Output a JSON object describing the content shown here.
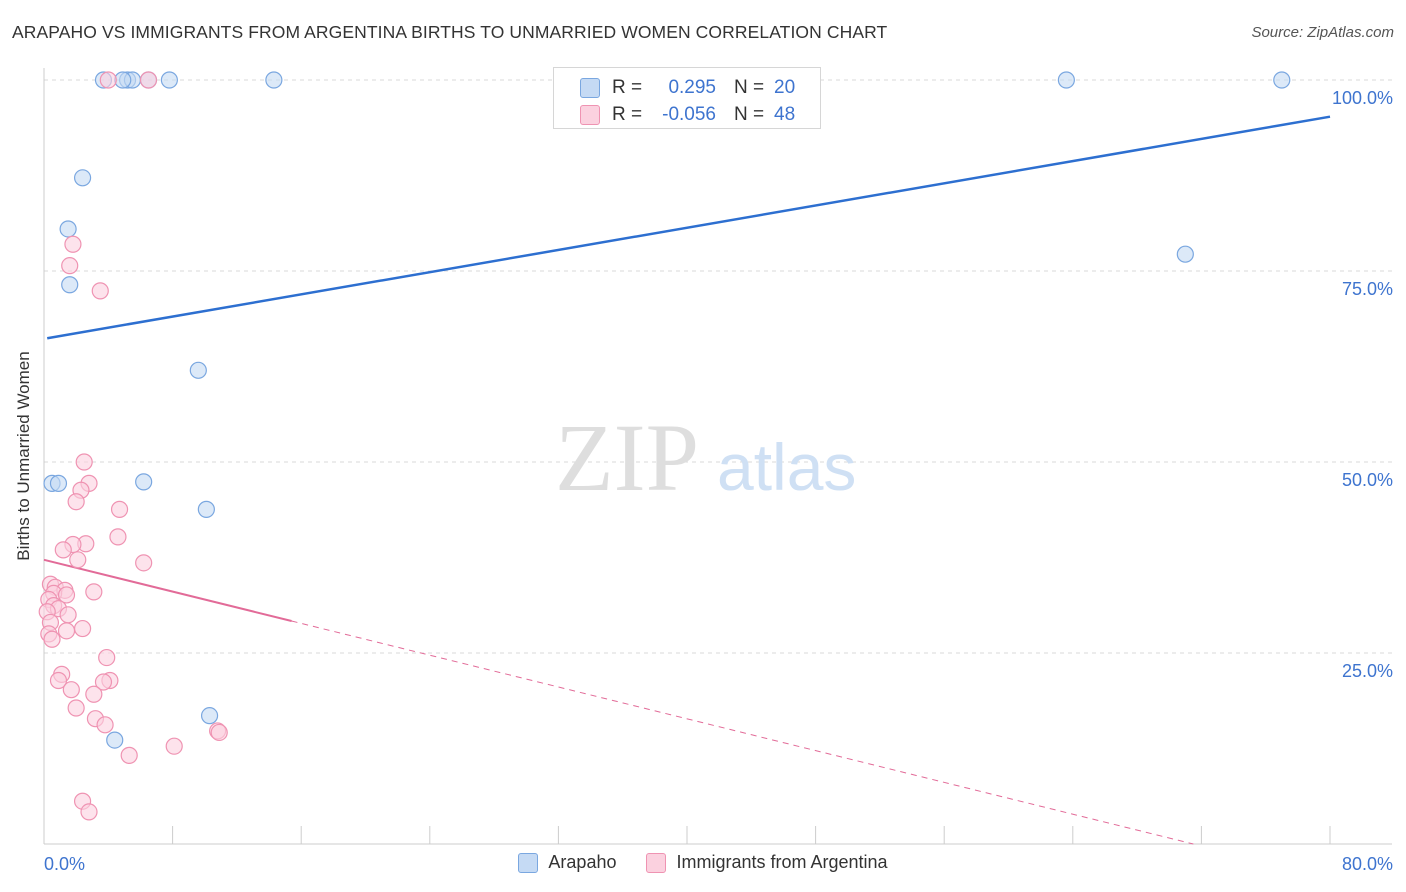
{
  "title": "ARAPAHO VS IMMIGRANTS FROM ARGENTINA BIRTHS TO UNMARRIED WOMEN CORRELATION CHART",
  "source": "Source: ZipAtlas.com",
  "watermark": {
    "zip": "ZIP",
    "atlas": "atlas"
  },
  "colors": {
    "blue_fill": "#c5daf4",
    "blue_stroke": "#7aa7e0",
    "blue_line": "#2d6fd0",
    "pink_fill": "#fbd1df",
    "pink_stroke": "#ef93b2",
    "pink_line": "#e26b98",
    "value_text": "#3e74cf",
    "grid": "#d9d9d9"
  },
  "legend_box": {
    "rows": [
      {
        "series": "blue",
        "r_label": "R =",
        "r_value": "0.295",
        "n_label": "N =",
        "n_value": "20"
      },
      {
        "series": "pink",
        "r_label": "R =",
        "r_value": "-0.056",
        "n_label": "N =",
        "n_value": "48"
      }
    ]
  },
  "legend_bottom": [
    {
      "series": "blue",
      "label": "Arapaho"
    },
    {
      "series": "pink",
      "label": "Immigrants from Argentina"
    }
  ],
  "chart_data": {
    "type": "scatter",
    "title": "ARAPAHO VS IMMIGRANTS FROM ARGENTINA BIRTHS TO UNMARRIED WOMEN CORRELATION CHART",
    "xlabel": "",
    "ylabel": "Births to Unmarried Women",
    "xlim": [
      0,
      80
    ],
    "ylim": [
      0,
      100
    ],
    "x_tick_labels": [
      {
        "value": 0,
        "label": "0.0%"
      },
      {
        "value": 80,
        "label": "80.0%"
      }
    ],
    "y_tick_labels": [
      {
        "value": 25,
        "label": "25.0%"
      },
      {
        "value": 50,
        "label": "50.0%"
      },
      {
        "value": 75,
        "label": "75.0%"
      },
      {
        "value": 100,
        "label": "100.0%"
      }
    ],
    "series": [
      {
        "name": "Arapaho",
        "color": "blue",
        "r": 0.295,
        "n": 20,
        "trend": {
          "x0": 0.2,
          "y0": 66.2,
          "x1": 80,
          "y1": 95.2,
          "solid_until_x": 80
        },
        "points": [
          [
            3.7,
            100
          ],
          [
            5.2,
            100
          ],
          [
            5.5,
            100
          ],
          [
            4.9,
            100
          ],
          [
            6.5,
            100
          ],
          [
            7.8,
            100
          ],
          [
            14.3,
            100
          ],
          [
            63.6,
            100
          ],
          [
            77.0,
            100
          ],
          [
            2.4,
            87.2
          ],
          [
            1.5,
            80.5
          ],
          [
            1.6,
            73.2
          ],
          [
            71.0,
            77.2
          ],
          [
            9.6,
            62.0
          ],
          [
            0.5,
            47.2
          ],
          [
            0.9,
            47.2
          ],
          [
            6.2,
            47.4
          ],
          [
            10.1,
            43.8
          ],
          [
            10.3,
            16.8
          ],
          [
            4.4,
            13.6
          ]
        ]
      },
      {
        "name": "Immigrants from Argentina",
        "color": "pink",
        "r": -0.056,
        "n": 48,
        "trend": {
          "x0": 0,
          "y0": 37.2,
          "x1": 71.5,
          "y1": 0,
          "solid_until_x": 15.4
        },
        "points": [
          [
            4.0,
            100
          ],
          [
            6.5,
            100
          ],
          [
            1.8,
            78.5
          ],
          [
            1.6,
            75.7
          ],
          [
            3.5,
            72.4
          ],
          [
            2.5,
            50.0
          ],
          [
            2.8,
            47.2
          ],
          [
            2.3,
            46.3
          ],
          [
            2.0,
            44.8
          ],
          [
            4.7,
            43.8
          ],
          [
            4.6,
            40.2
          ],
          [
            2.6,
            39.3
          ],
          [
            1.8,
            39.2
          ],
          [
            1.2,
            38.5
          ],
          [
            2.1,
            37.2
          ],
          [
            6.2,
            36.8
          ],
          [
            0.4,
            34.0
          ],
          [
            0.7,
            33.6
          ],
          [
            1.3,
            33.2
          ],
          [
            0.6,
            32.8
          ],
          [
            3.1,
            33.0
          ],
          [
            1.4,
            32.6
          ],
          [
            0.3,
            32.0
          ],
          [
            0.6,
            31.2
          ],
          [
            0.9,
            30.8
          ],
          [
            0.2,
            30.4
          ],
          [
            1.5,
            30.0
          ],
          [
            0.4,
            29.0
          ],
          [
            2.4,
            28.2
          ],
          [
            1.4,
            27.9
          ],
          [
            0.3,
            27.5
          ],
          [
            0.5,
            26.8
          ],
          [
            3.9,
            24.4
          ],
          [
            1.1,
            22.2
          ],
          [
            0.9,
            21.4
          ],
          [
            4.1,
            21.4
          ],
          [
            3.7,
            21.2
          ],
          [
            1.7,
            20.2
          ],
          [
            3.1,
            19.6
          ],
          [
            2.0,
            17.8
          ],
          [
            3.2,
            16.4
          ],
          [
            3.8,
            15.6
          ],
          [
            8.1,
            12.8
          ],
          [
            10.8,
            14.8
          ],
          [
            10.9,
            14.6
          ],
          [
            5.3,
            11.6
          ],
          [
            2.4,
            5.6
          ],
          [
            2.8,
            4.2
          ]
        ]
      }
    ]
  }
}
